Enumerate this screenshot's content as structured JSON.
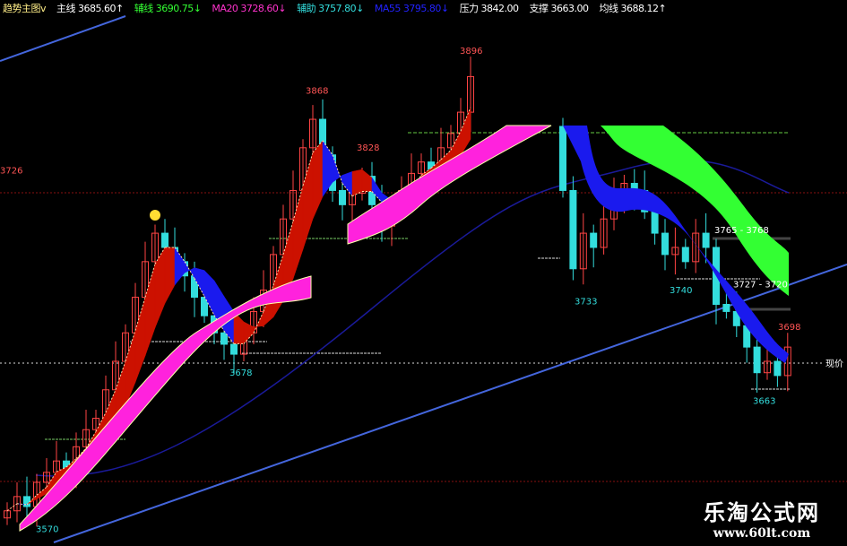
{
  "header": {
    "indicator": "趋势主图v",
    "items": [
      {
        "text": "主线 3685.60↑",
        "color": "#ffffff"
      },
      {
        "text": "辅线 3690.75↓",
        "color": "#33ff33"
      },
      {
        "text": "MA20 3728.60↓",
        "color": "#ff33cc"
      },
      {
        "text": "辅助 3757.80↓",
        "color": "#33dddd"
      },
      {
        "text": "MA55 3795.80↓",
        "color": "#2222ff"
      },
      {
        "text": "压力 3842.00",
        "color": "#ffffff"
      },
      {
        "text": "支撑 3663.00",
        "color": "#ffffff"
      },
      {
        "text": "均线 3688.12↑",
        "color": "#ffffff"
      }
    ]
  },
  "chart_data": {
    "type": "candlestick",
    "ylim": [
      3560,
      3930
    ],
    "segments": [
      {
        "first_open": 3570,
        "closes": [
          3575,
          3585,
          3578,
          3595,
          3602,
          3610,
          3605,
          3620,
          3632,
          3640,
          3660,
          3680,
          3700,
          3725,
          3750,
          3770,
          3760,
          3750,
          3740,
          3725,
          3712,
          3700,
          3692,
          3685,
          3700,
          3715,
          3730,
          3755,
          3780,
          3800,
          3830,
          3850,
          3825,
          3800,
          3790,
          3798,
          3810,
          3790,
          3775,
          3790,
          3800,
          3812,
          3820,
          3815,
          3830,
          3840,
          3855,
          3880
        ]
      },
      {
        "first_open": 3845,
        "closes": [
          3800,
          3745,
          3770,
          3760,
          3780,
          3795,
          3805,
          3800,
          3785,
          3770,
          3755,
          3760,
          3750,
          3770,
          3760,
          3720,
          3715,
          3705,
          3690,
          3672,
          3680,
          3670,
          3690
        ]
      }
    ],
    "levels": {
      "resistance": 3842.0,
      "support": 3663.0,
      "average": 3688.12
    },
    "annotations": [
      {
        "text": "3726",
        "price": 3812,
        "color": "#ff5555"
      },
      {
        "text": "3570",
        "price": 3560,
        "color": "#33dddd"
      },
      {
        "text": "3678",
        "price": 3670,
        "color": "#33dddd"
      },
      {
        "text": "3868",
        "price": 3868,
        "color": "#ff5555"
      },
      {
        "text": "3828",
        "price": 3828,
        "color": "#ff5555"
      },
      {
        "text": "3896",
        "price": 3896,
        "color": "#ff5555"
      },
      {
        "text": "3733",
        "price": 3720,
        "color": "#33dddd"
      },
      {
        "text": "3740",
        "price": 3728,
        "color": "#33dddd"
      },
      {
        "text": "3765 - 3768",
        "price": 3770,
        "color": "#ffffff"
      },
      {
        "text": "3727 - 3720",
        "price": 3732,
        "color": "#ffffff"
      },
      {
        "text": "3698",
        "price": 3702,
        "color": "#ff5555"
      },
      {
        "text": "3663",
        "price": 3650,
        "color": "#33dddd"
      }
    ],
    "right_label": "现价",
    "colors": {
      "up": "#ff4444",
      "down": "#33dddd",
      "rise_band": "#cc1100",
      "fall_band": "#1a1aee",
      "long_band": "#ff22dd",
      "right_band": "#33ff33",
      "trend": "#4466dd"
    }
  },
  "watermark": {
    "title": "乐淘公式网",
    "url": "www.60lt.com"
  }
}
